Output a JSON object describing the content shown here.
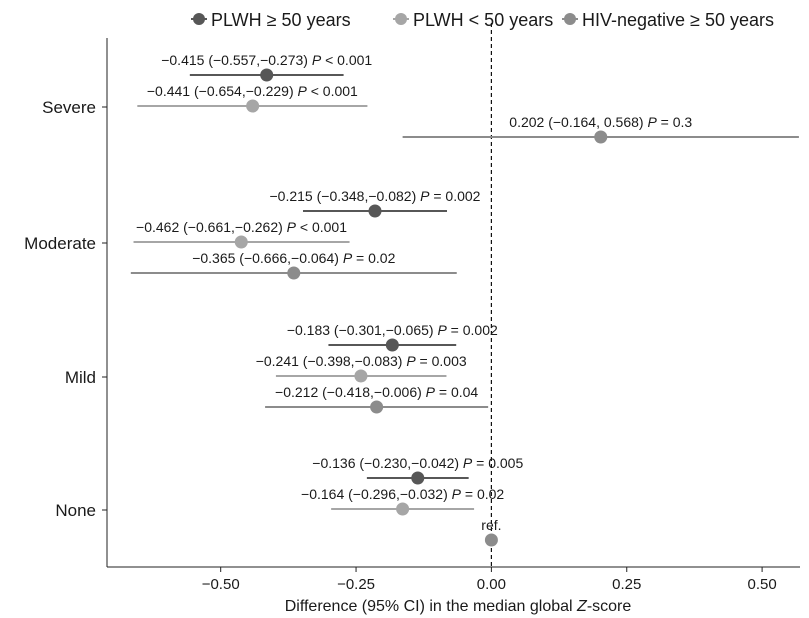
{
  "chart_data": {
    "type": "forest",
    "xlabel_prefix": "Difference (95% CI) in the median global ",
    "xlabel_italic": "Z",
    "xlabel_suffix": "-score",
    "xlim": [
      -0.71,
      0.57
    ],
    "x_ticks": [
      -0.5,
      -0.25,
      0.0,
      0.25,
      0.5
    ],
    "x_tick_labels": [
      "−0.50",
      "−0.25",
      "0.00",
      "0.25",
      "0.50"
    ],
    "reference_line_x": 0,
    "legend_position": "top",
    "categories": [
      "Severe",
      "Moderate",
      "Mild",
      "None"
    ],
    "series": [
      {
        "name": "PLWH ≥ 50 years",
        "color": "#575757",
        "points": [
          {
            "category": "Severe",
            "estimate": -0.415,
            "lower": -0.557,
            "upper": -0.273,
            "label": "−0.415 (−0.557,−0.273) ",
            "p_text": " < 0.001"
          },
          {
            "category": "Moderate",
            "estimate": -0.215,
            "lower": -0.348,
            "upper": -0.082,
            "label": "−0.215 (−0.348,−0.082) ",
            "p_text": " = 0.002"
          },
          {
            "category": "Mild",
            "estimate": -0.183,
            "lower": -0.301,
            "upper": -0.065,
            "label": "−0.183 (−0.301,−0.065) ",
            "p_text": " = 0.002"
          },
          {
            "category": "None",
            "estimate": -0.136,
            "lower": -0.23,
            "upper": -0.042,
            "label": "−0.136 (−0.230,−0.042) ",
            "p_text": " = 0.005"
          }
        ]
      },
      {
        "name": "PLWH < 50 years",
        "color": "#a6a6a6",
        "points": [
          {
            "category": "Severe",
            "estimate": -0.441,
            "lower": -0.654,
            "upper": -0.229,
            "label": "−0.441 (−0.654,−0.229) ",
            "p_text": " < 0.001"
          },
          {
            "category": "Moderate",
            "estimate": -0.462,
            "lower": -0.661,
            "upper": -0.262,
            "label": "−0.462 (−0.661,−0.262) ",
            "p_text": " < 0.001"
          },
          {
            "category": "Mild",
            "estimate": -0.241,
            "lower": -0.398,
            "upper": -0.083,
            "label": "−0.241 (−0.398,−0.083) ",
            "p_text": " = 0.003"
          },
          {
            "category": "None",
            "estimate": -0.164,
            "lower": -0.296,
            "upper": -0.032,
            "label": "−0.164 (−0.296,−0.032) ",
            "p_text": " = 0.02"
          }
        ]
      },
      {
        "name": "HIV-negative ≥ 50 years",
        "color": "#8c8c8c",
        "points": [
          {
            "category": "Severe",
            "estimate": 0.202,
            "lower": -0.164,
            "upper": 0.568,
            "label": "0.202 (−0.164, 0.568) ",
            "p_text": " = 0.3"
          },
          {
            "category": "Moderate",
            "estimate": -0.365,
            "lower": -0.666,
            "upper": -0.064,
            "label": "−0.365 (−0.666,−0.064) ",
            "p_text": " = 0.02"
          },
          {
            "category": "Mild",
            "estimate": -0.212,
            "lower": -0.418,
            "upper": -0.006,
            "label": "−0.212 (−0.418,−0.006) ",
            "p_text": " = 0.04"
          },
          {
            "category": "None",
            "estimate": 0.0,
            "lower": 0.0,
            "upper": 0.0,
            "label": "ref.",
            "p_text": "",
            "reference": true
          }
        ]
      }
    ],
    "p_symbol": "P"
  }
}
